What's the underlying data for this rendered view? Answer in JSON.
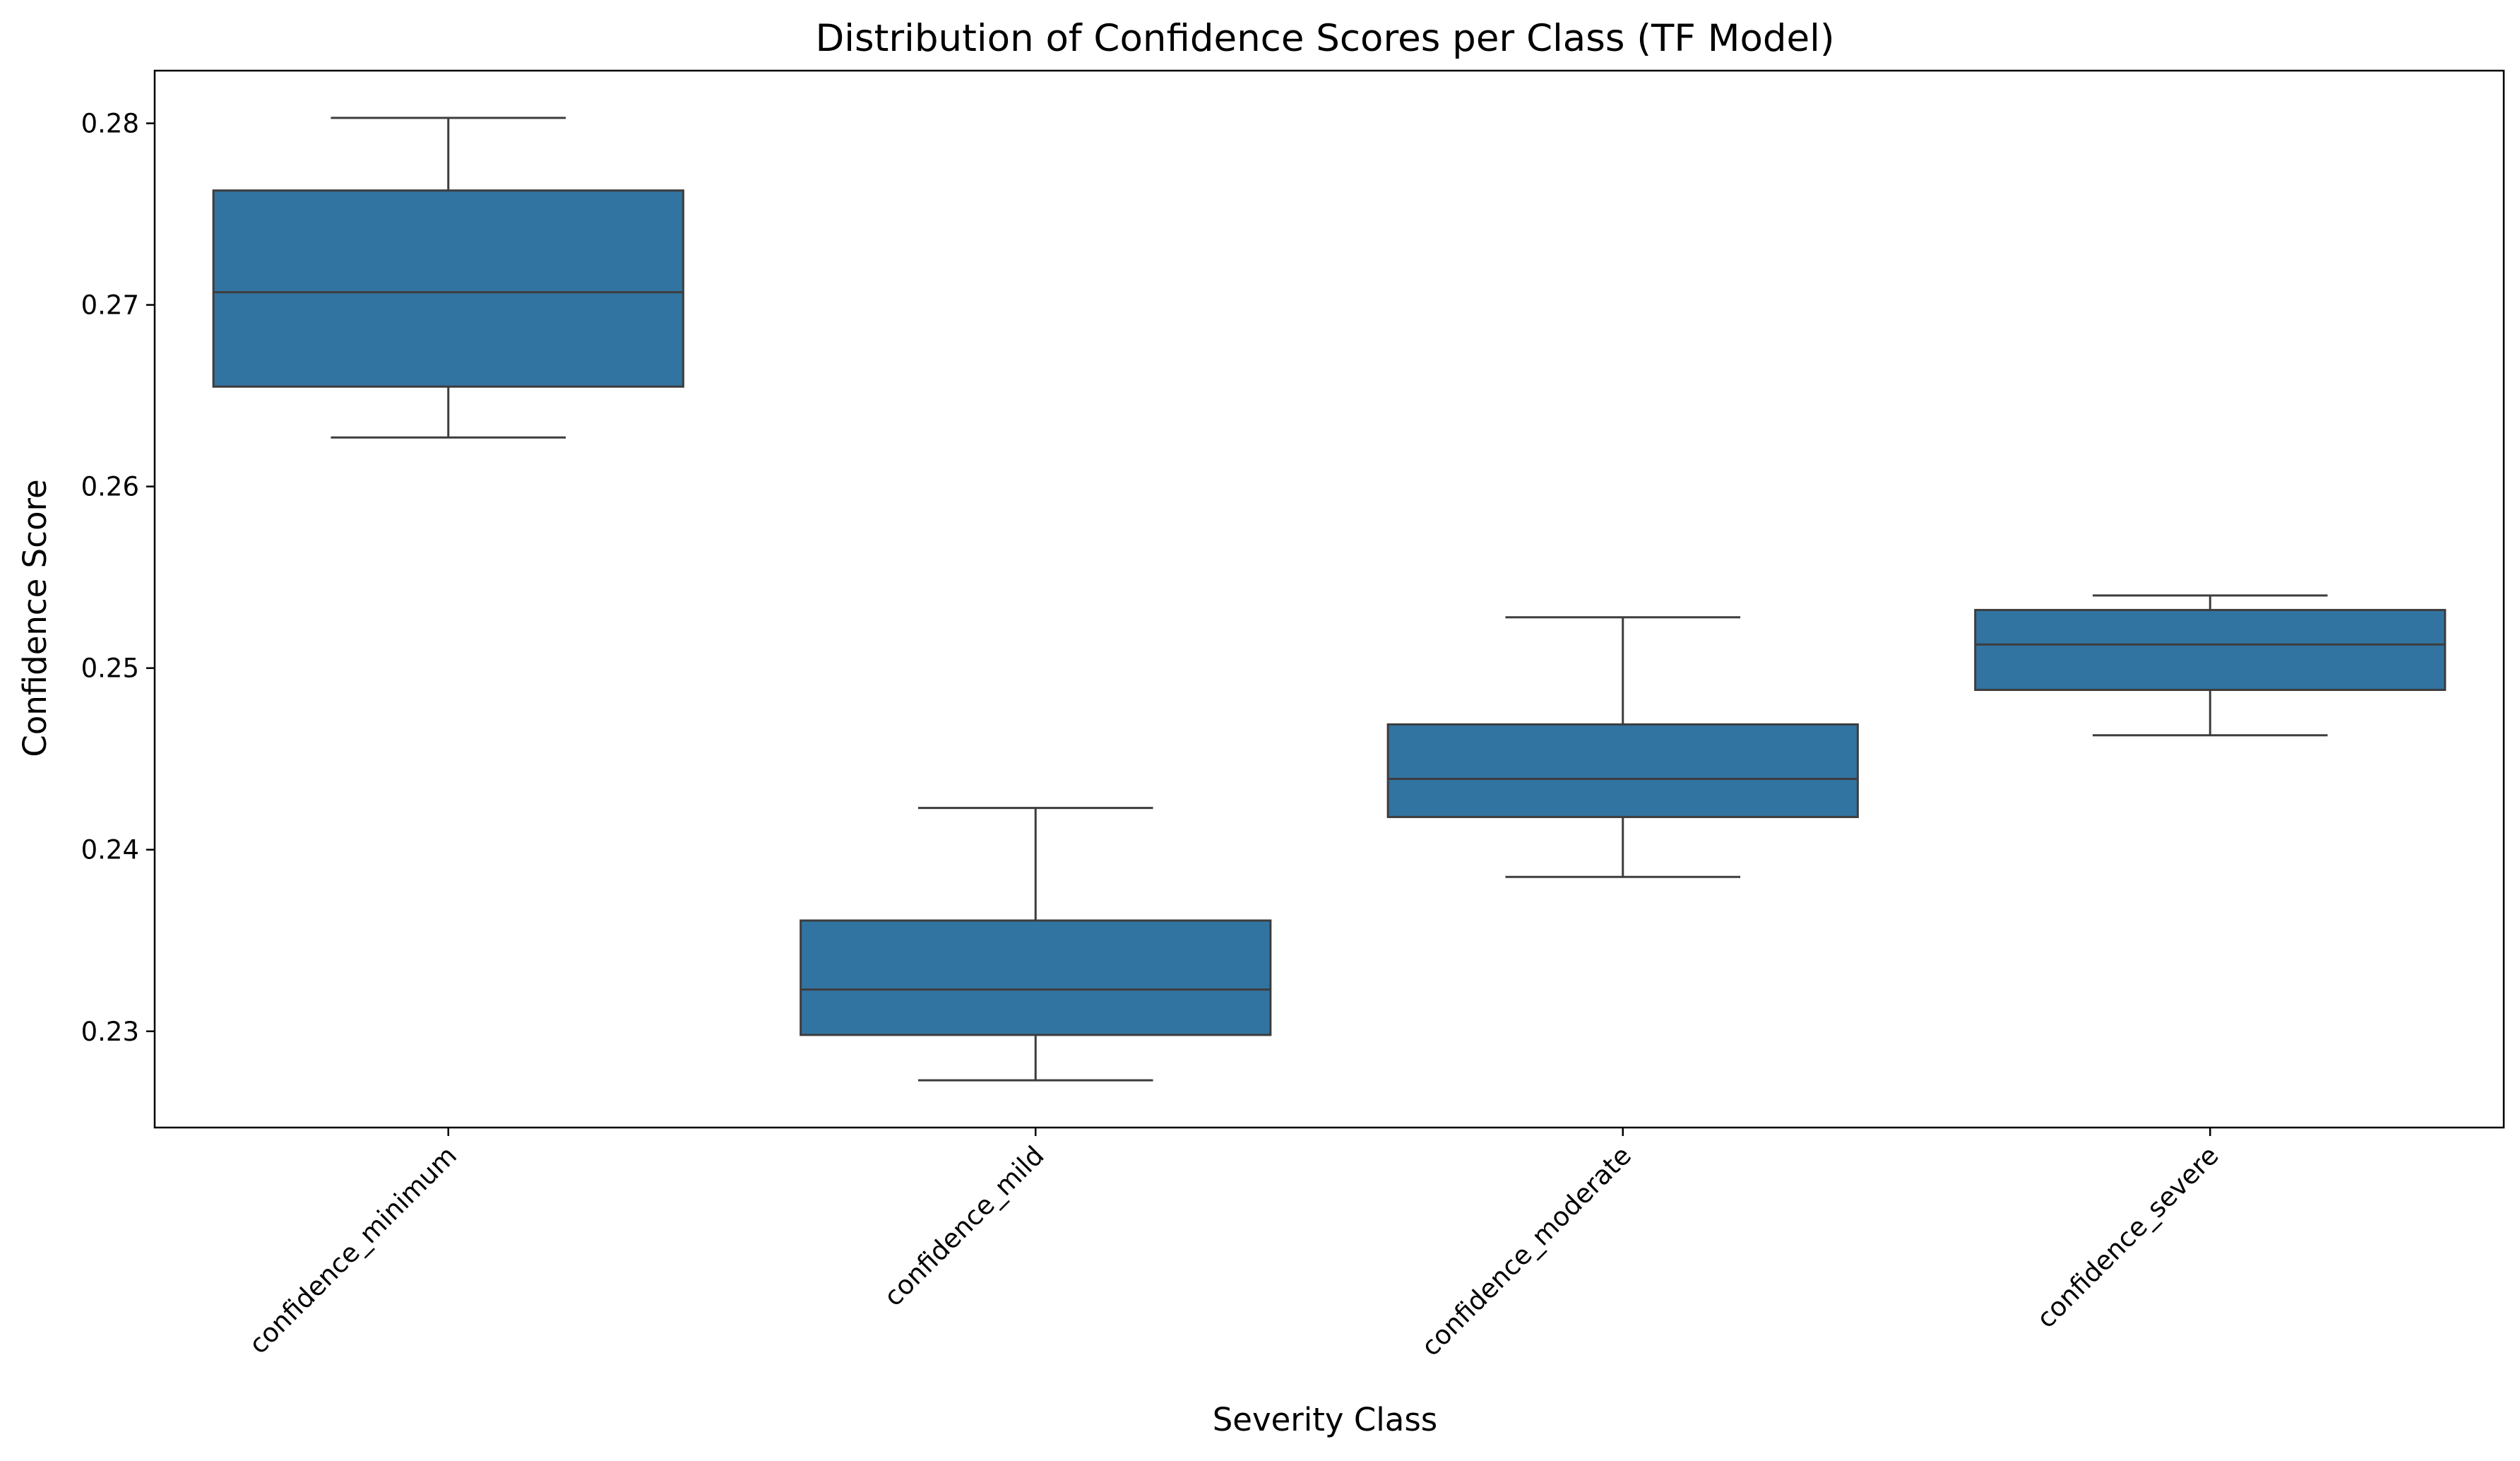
{
  "chart_data": {
    "type": "box",
    "title": "Distribution of Confidence Scores per Class (TF Model)",
    "xlabel": "Severity Class",
    "ylabel": "Confidence Score",
    "categories": [
      "confidence_minimum",
      "confidence_mild",
      "confidence_moderate",
      "confidence_severe"
    ],
    "boxes": [
      {
        "category": "confidence_minimum",
        "whisker_low": 0.2627,
        "q1": 0.2655,
        "median": 0.2707,
        "q3": 0.2763,
        "whisker_high": 0.2803
      },
      {
        "category": "confidence_mild",
        "whisker_low": 0.2273,
        "q1": 0.2298,
        "median": 0.2323,
        "q3": 0.2361,
        "whisker_high": 0.2423
      },
      {
        "category": "confidence_moderate",
        "whisker_low": 0.2385,
        "q1": 0.2418,
        "median": 0.2439,
        "q3": 0.2469,
        "whisker_high": 0.2528
      },
      {
        "category": "confidence_severe",
        "whisker_low": 0.2463,
        "q1": 0.2488,
        "median": 0.2513,
        "q3": 0.2532,
        "whisker_high": 0.254
      }
    ],
    "ylim": [
      0.2247,
      0.2829
    ],
    "yticks": [
      "0.23",
      "0.24",
      "0.25",
      "0.26",
      "0.27",
      "0.28"
    ],
    "grid": false,
    "box_color": "#3274a1",
    "line_color": "#3d3d3d"
  }
}
